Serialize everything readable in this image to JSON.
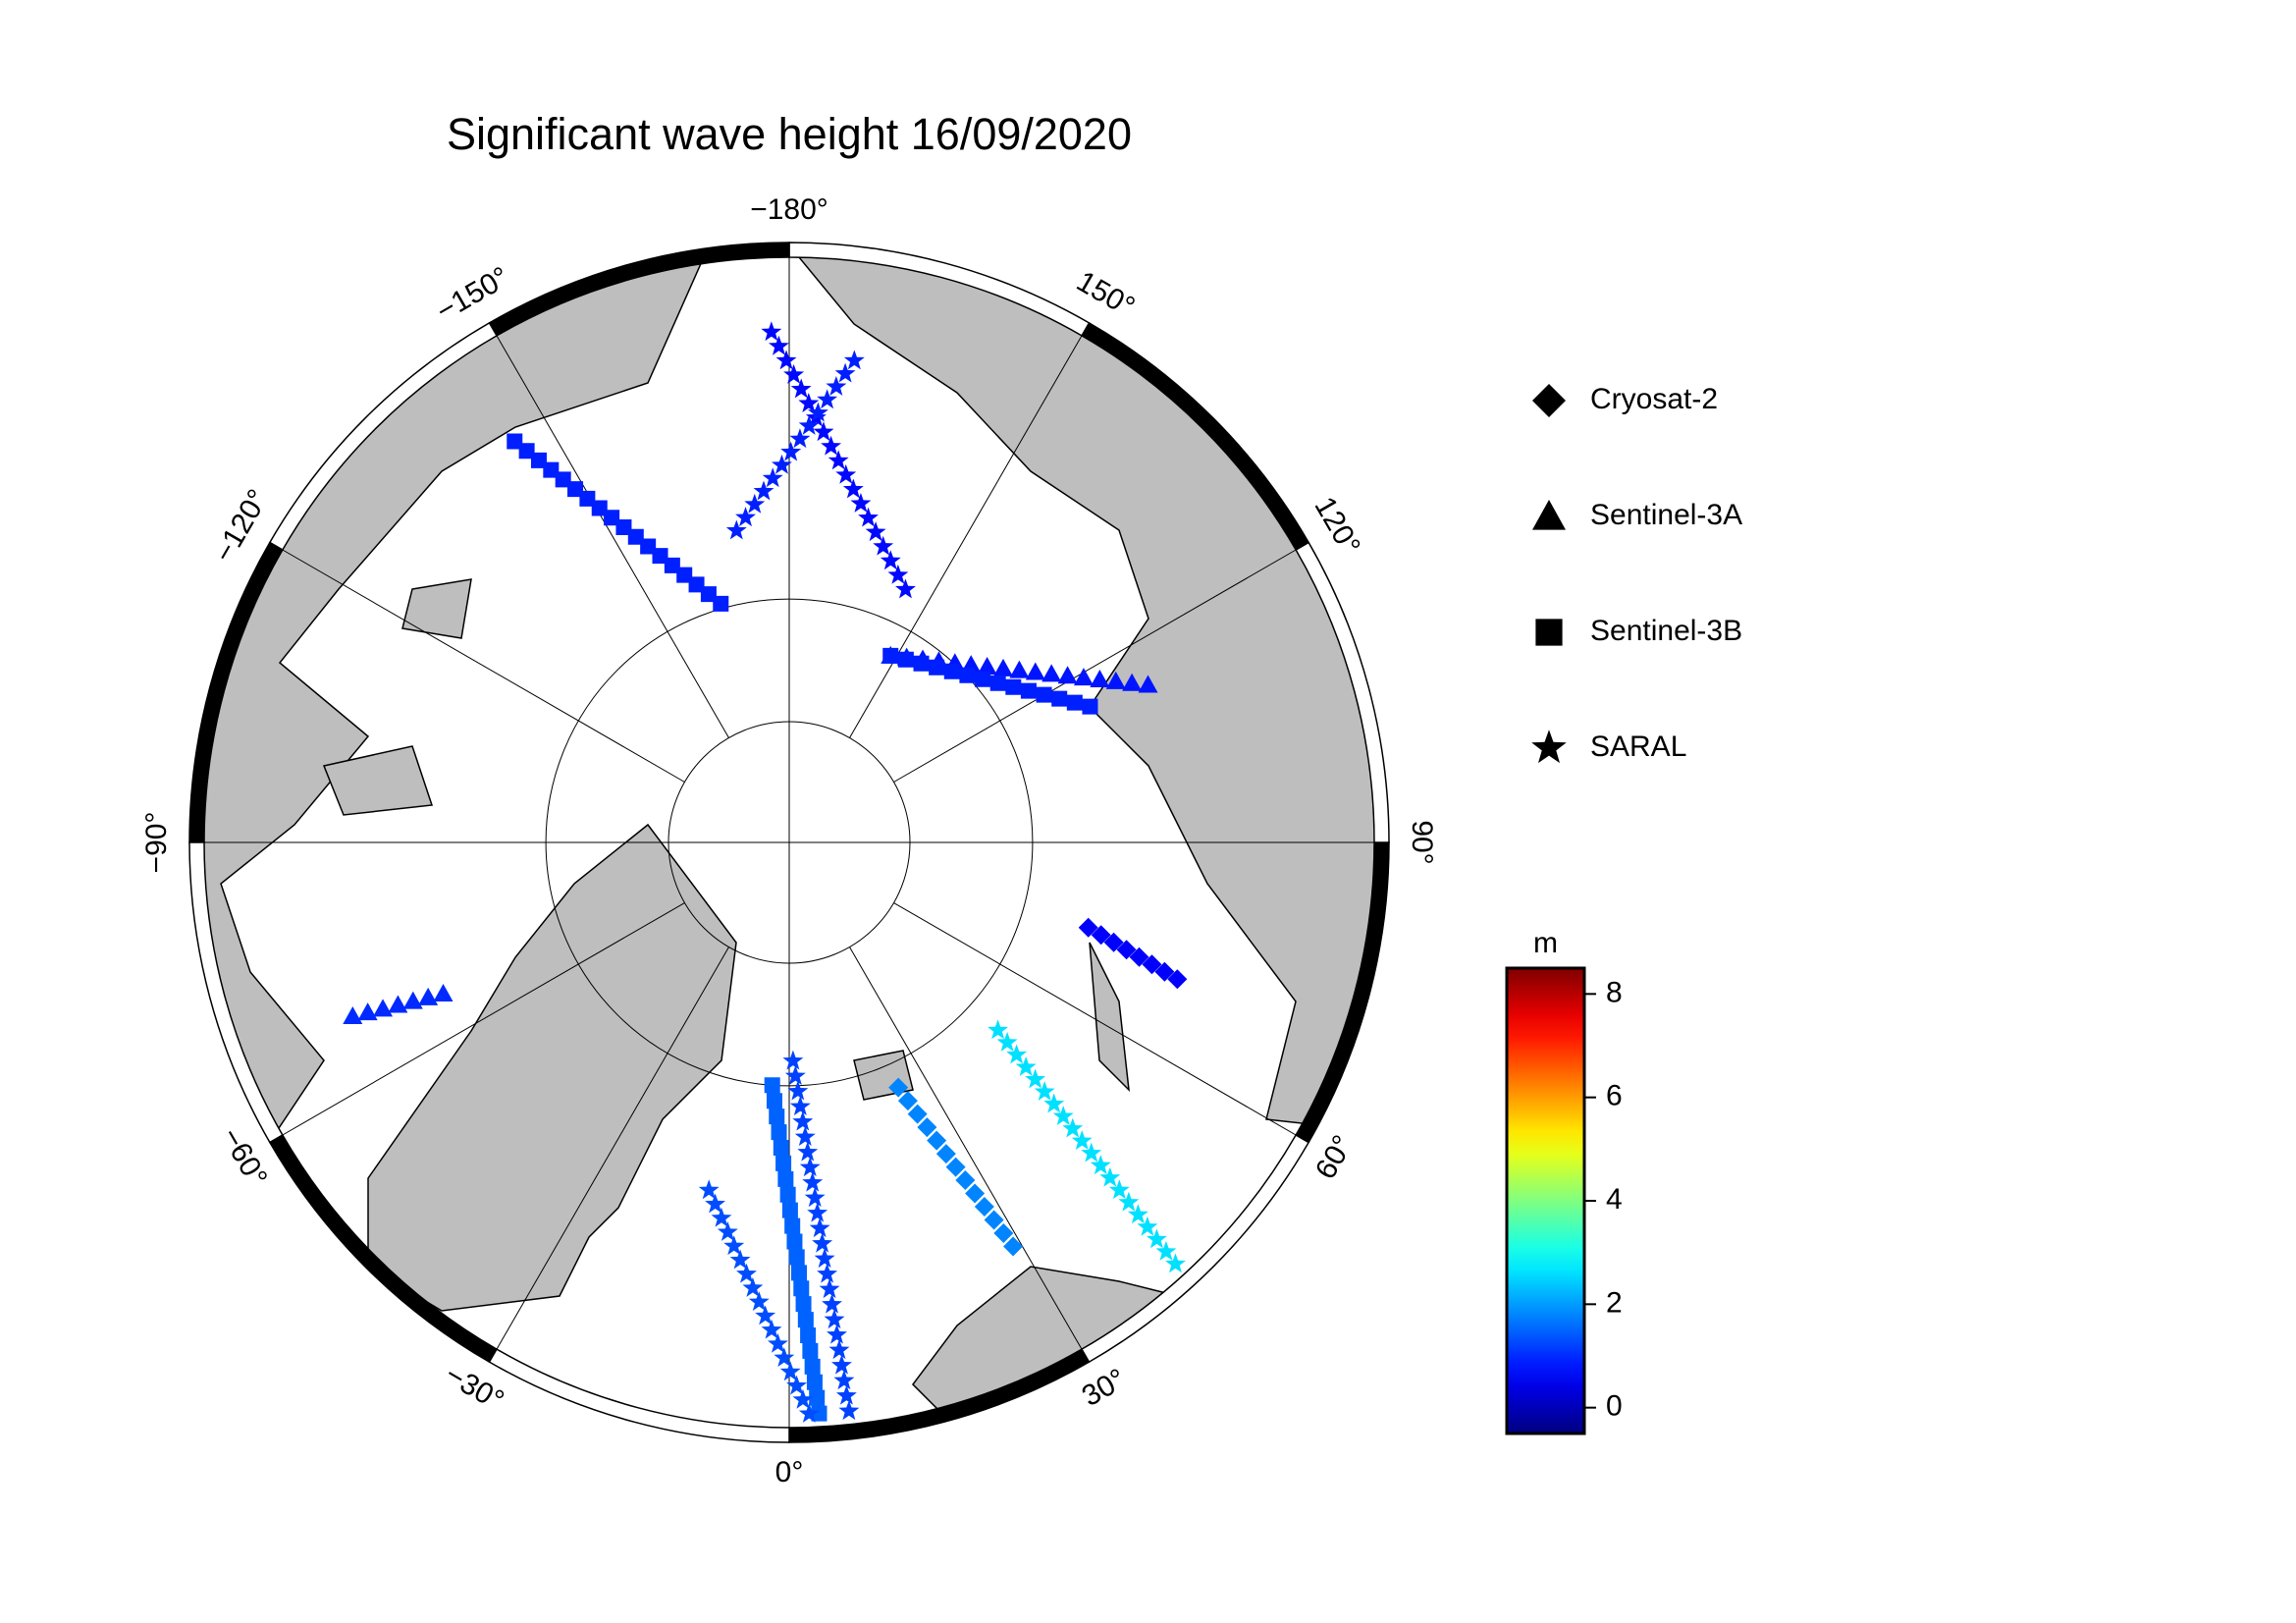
{
  "title": "Significant wave height 16/09/2020",
  "graticule_labels": [
    {
      "value": -180,
      "label": "−180°"
    },
    {
      "value": 150,
      "label": "150°"
    },
    {
      "value": 120,
      "label": "120°"
    },
    {
      "value": 90,
      "label": "90°"
    },
    {
      "value": 60,
      "label": "60°"
    },
    {
      "value": 30,
      "label": "30°"
    },
    {
      "value": 0,
      "label": "0°"
    },
    {
      "value": -30,
      "label": "−30°"
    },
    {
      "value": -60,
      "label": "−60°"
    },
    {
      "value": -90,
      "label": "−90°"
    },
    {
      "value": -120,
      "label": "−120°"
    },
    {
      "value": -150,
      "label": "−150°"
    }
  ],
  "satellites": [
    {
      "name": "Cryosat-2",
      "tracks": [
        {
          "lat": [
            68,
            53
          ],
          "lon": [
            24,
            29
          ],
          "swh": 1.8
        },
        {
          "lat": [
            64.6,
            56.8
          ],
          "lon": [
            74.1,
            70.6
          ],
          "swh": 0.6
        }
      ]
    },
    {
      "name": "Sentinel-3A",
      "tracks": [
        {
          "lat": [
            72.5,
            58.3
          ],
          "lon": [
            151.5,
            113.7
          ],
          "swh": 0.8
        },
        {
          "lat": [
            52.4,
            59.4
          ],
          "lon": [
            -68.3,
            -66.4
          ],
          "swh": 1.0
        }
      ]
    },
    {
      "name": "Sentinel-3B",
      "tracks": [
        {
          "lat": [
            70,
            45
          ],
          "lon": [
            -4,
            3
          ],
          "swh": 1.5
        },
        {
          "lat": [
            51.2,
            69.6
          ],
          "lon": [
            -145.6,
            -164
          ],
          "swh": 0.9
        },
        {
          "lat": [
            72.5,
            63.1
          ],
          "lon": [
            151.5,
            114.3
          ],
          "swh": 0.9
        }
      ]
    },
    {
      "name": "SARAL",
      "tracks": [
        {
          "lat": [
            72,
            45
          ],
          "lon": [
            1,
            6
          ],
          "swh": 1.2
        },
        {
          "lat": [
            61,
            45
          ],
          "lon": [
            -13,
            2
          ],
          "swh": 1.3
        },
        {
          "lat": [
            67,
            45
          ],
          "lon": [
            48,
            42.5
          ],
          "swh": 2.6
        },
        {
          "lat": [
            49.4,
            67.2
          ],
          "lon": [
            -178,
            155.3
          ],
          "swh": 0.7
        },
        {
          "lat": [
            51.2,
            64.2
          ],
          "lon": [
            172.3,
            -170.4
          ],
          "swh": 0.9
        }
      ]
    }
  ],
  "colorbar": {
    "unit": "m",
    "ylim": [
      -0.5,
      8.5
    ],
    "yticks": [
      0,
      2,
      4,
      6,
      8
    ]
  }
}
